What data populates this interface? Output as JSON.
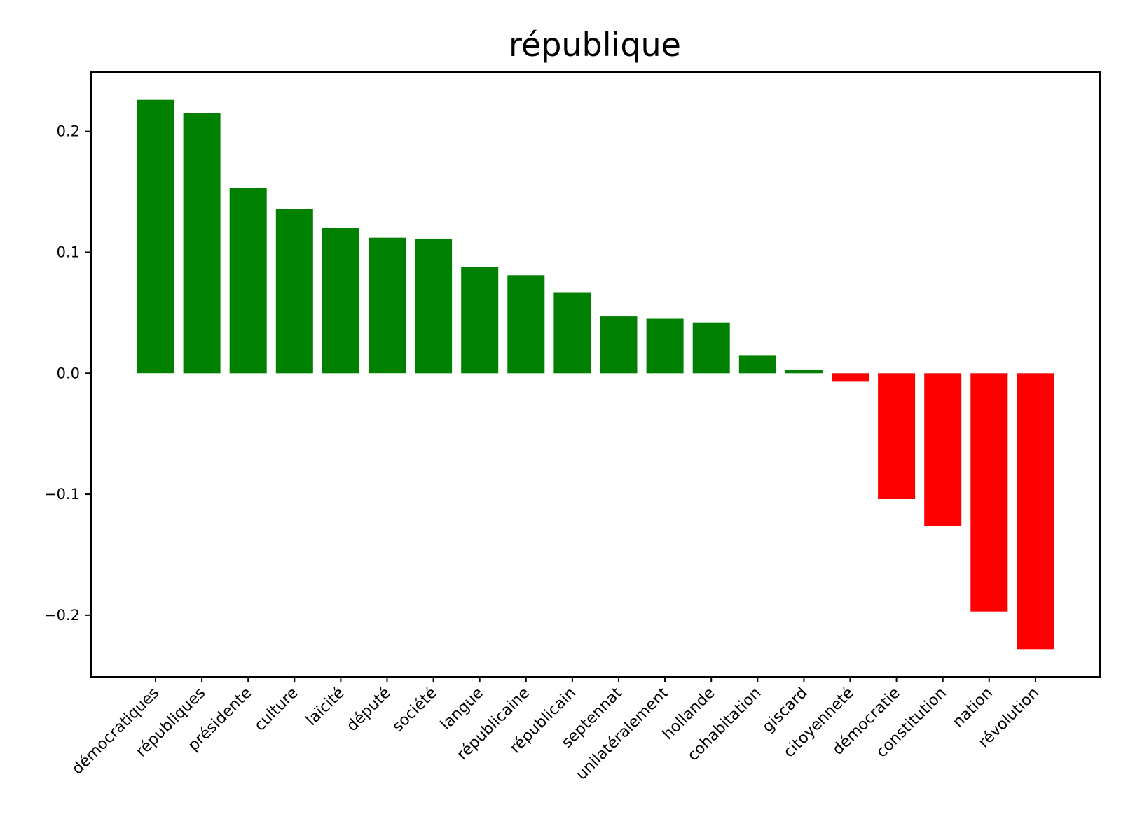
{
  "chart_data": {
    "type": "bar",
    "title": "république",
    "xlabel": "",
    "ylabel": "",
    "ylim": [
      -0.251,
      0.249
    ],
    "yticks": [
      {
        "value": 0.2,
        "label": "0.2"
      },
      {
        "value": 0.1,
        "label": "0.1"
      },
      {
        "value": 0.0,
        "label": "0.0"
      },
      {
        "value": -0.1,
        "label": "−0.1"
      },
      {
        "value": -0.2,
        "label": "−0.2"
      }
    ],
    "categories": [
      "démocratiques",
      "républiques",
      "présidente",
      "culture",
      "laïcité",
      "député",
      "société",
      "langue",
      "républicaine",
      "républicain",
      "septennat",
      "unilatéralement",
      "hollande",
      "cohabitation",
      "giscard",
      "citoyenneté",
      "démocratie",
      "constitution",
      "nation",
      "révolution"
    ],
    "values": [
      0.226,
      0.215,
      0.153,
      0.136,
      0.12,
      0.112,
      0.111,
      0.088,
      0.081,
      0.067,
      0.047,
      0.045,
      0.042,
      0.015,
      0.003,
      -0.007,
      -0.104,
      -0.126,
      -0.197,
      -0.228
    ],
    "positive_color": "#008000",
    "negative_color": "#ff0000",
    "grid": false,
    "legend": "none"
  }
}
